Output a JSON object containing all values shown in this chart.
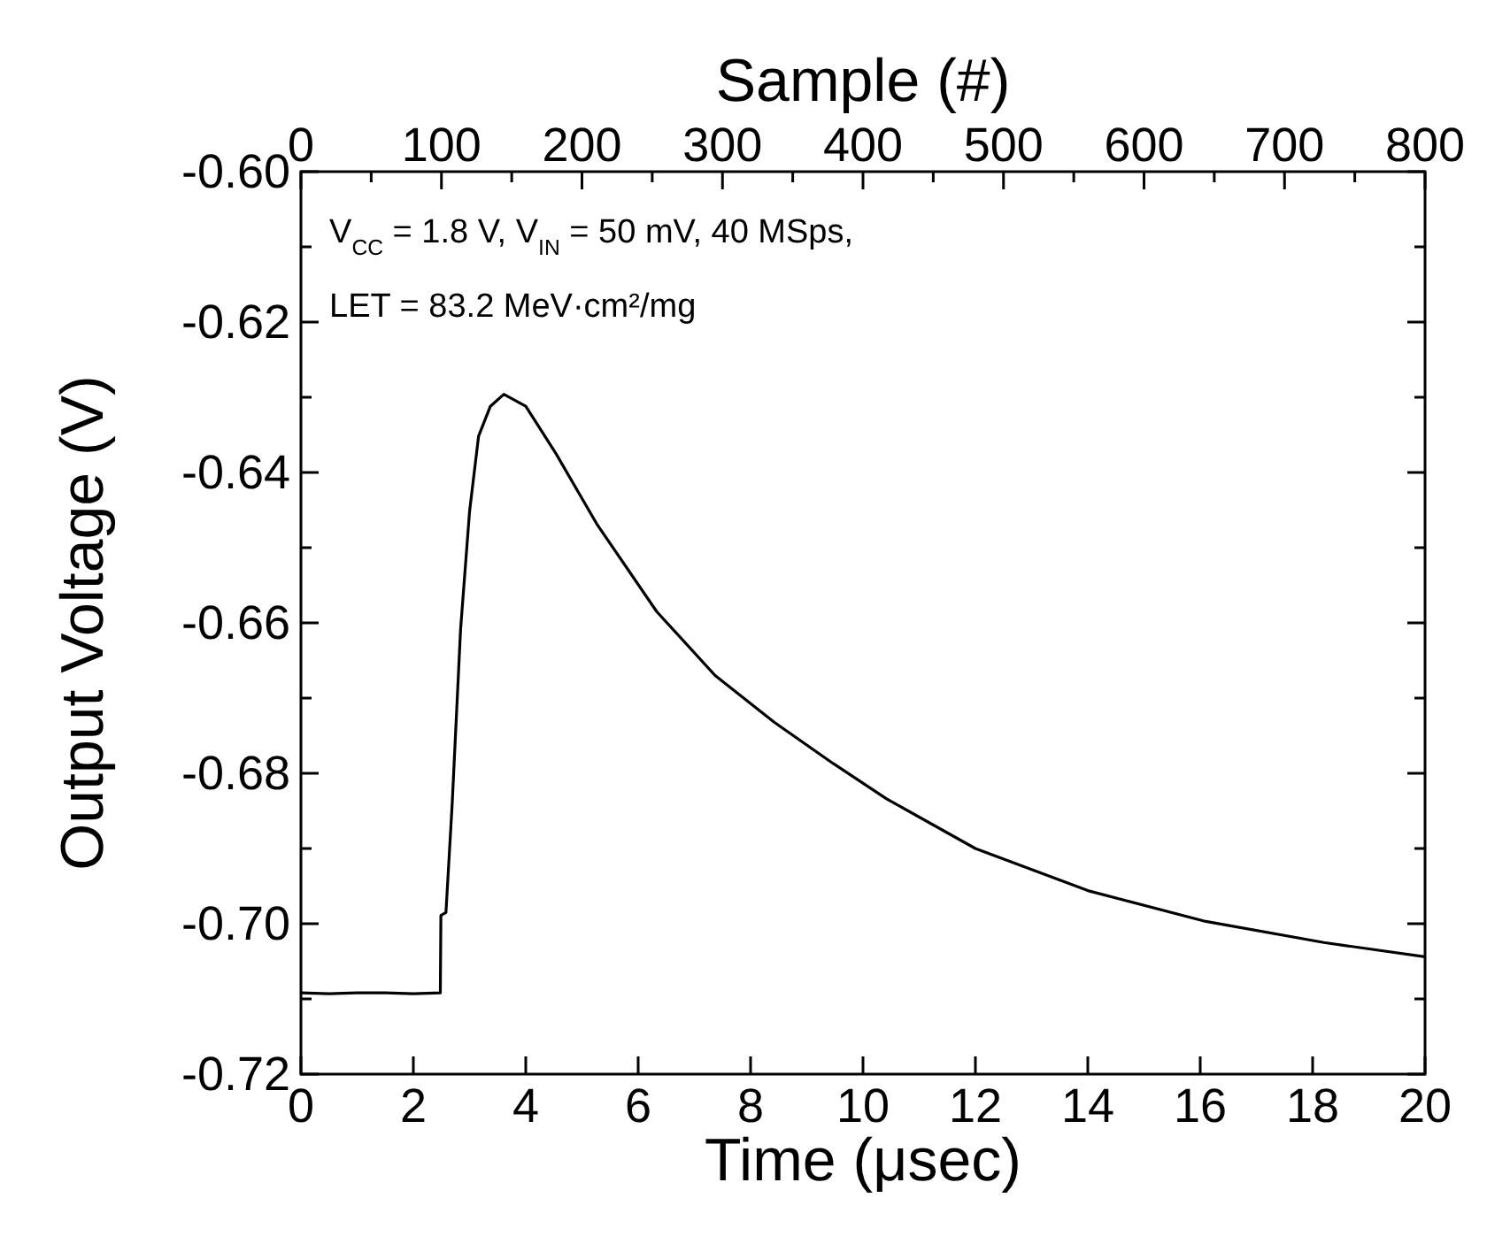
{
  "chart_data": {
    "type": "line",
    "xlabel": "Time (μsec)",
    "ylabel": "Output Voltage (V)",
    "x2label": "Sample (#)",
    "xlim": [
      0,
      20
    ],
    "xticks": [
      0,
      2,
      4,
      6,
      8,
      10,
      12,
      14,
      16,
      18,
      20
    ],
    "x2lim": [
      0,
      800
    ],
    "x2ticks": [
      0,
      {
        "value": 50,
        "label": null
      },
      100,
      {
        "value": 150,
        "label": null
      },
      200,
      {
        "value": 250,
        "label": null
      },
      300,
      {
        "value": 350,
        "label": null
      },
      400,
      {
        "value": 450,
        "label": null
      },
      500,
      {
        "value": 550,
        "label": null
      },
      600,
      {
        "value": 650,
        "label": null
      },
      700,
      {
        "value": 750,
        "label": null
      },
      800
    ],
    "ylim": [
      -0.72,
      -0.6
    ],
    "yticks": [
      -0.72,
      {
        "value": -0.71,
        "label": null
      },
      {
        "value": -0.7,
        "label": "-0.70"
      },
      {
        "value": -0.69,
        "label": null
      },
      -0.68,
      {
        "value": -0.67,
        "label": null
      },
      -0.66,
      {
        "value": -0.65,
        "label": null
      },
      -0.64,
      {
        "value": -0.63,
        "label": null
      },
      -0.62,
      {
        "value": -0.61,
        "label": null
      },
      {
        "value": -0.6,
        "label": "-0.60"
      }
    ],
    "grid": false,
    "marker": "none",
    "line_style": "solid",
    "annotations": [
      "V$_{CC}$ = 1.8 V, V$_{IN}$ = 50 mV, 40 MSps,",
      "LET = 83.2 MeV·cm²/mg"
    ],
    "series": [
      {
        "color": "#000000",
        "x": [
          0,
          0.5,
          1,
          1.5,
          2,
          2.48,
          2.49,
          2.58,
          2.69,
          2.84,
          3.0,
          3.16,
          3.37,
          3.61,
          4.0,
          4.53,
          5.26,
          6.33,
          7.37,
          8.42,
          9.47,
          10.42,
          12.0,
          14.0,
          16.1,
          18.2,
          20
        ],
        "values": [
          -0.7092,
          -0.7093,
          -0.7092,
          -0.7092,
          -0.7093,
          -0.7092,
          -0.6989,
          -0.6985,
          -0.6842,
          -0.6609,
          -0.6452,
          -0.6352,
          -0.6312,
          -0.6296,
          -0.6312,
          -0.6374,
          -0.6468,
          -0.6585,
          -0.667,
          -0.6732,
          -0.6787,
          -0.6834,
          -0.69,
          -0.6956,
          -0.6997,
          -0.7025,
          -0.7044
        ]
      }
    ]
  }
}
